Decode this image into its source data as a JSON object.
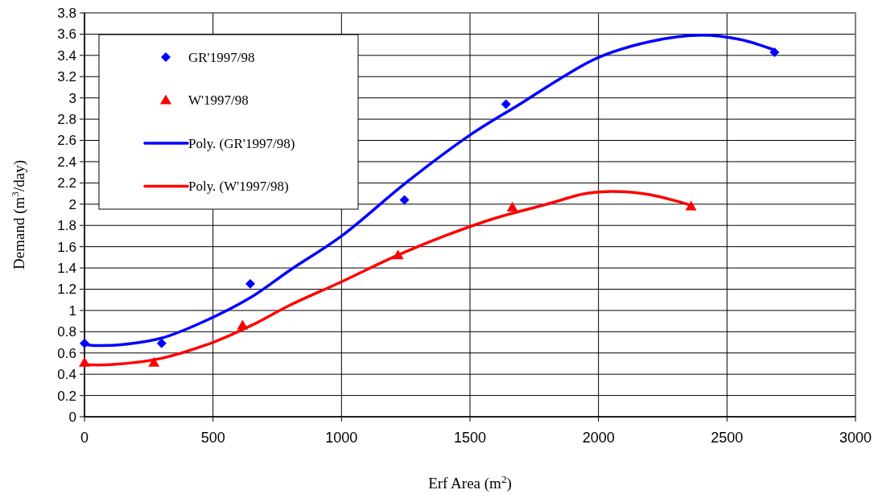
{
  "chart_data": {
    "type": "scatter",
    "xlabel": "Erf Area (m$^{2}$)",
    "ylabel": "Demand (m$^{3}$/day)",
    "xlim": [
      0,
      3000
    ],
    "xticks": [
      0,
      500,
      1000,
      1500,
      2000,
      2500,
      3000
    ],
    "ylim": [
      0,
      3.8
    ],
    "yticks": [
      0,
      0.2,
      0.4,
      0.6,
      0.8,
      1,
      1.2,
      1.4,
      1.6,
      1.8,
      2,
      2.2,
      2.4,
      2.6,
      2.8,
      3,
      3.2,
      3.4,
      3.6,
      3.8
    ],
    "grid": true,
    "legend": "top left",
    "series": [
      {
        "name": "GR'1997/98",
        "marker": "diamond",
        "color": "#0000ff",
        "x": [
          0,
          300,
          645,
          1245,
          1640,
          2685
        ],
        "values": [
          0.69,
          0.69,
          1.25,
          2.04,
          2.94,
          3.43
        ]
      },
      {
        "name": "W'1997/98",
        "marker": "triangle",
        "color": "#ff0000",
        "x": [
          0,
          270,
          615,
          1220,
          1665,
          2360
        ],
        "values": [
          0.51,
          0.51,
          0.86,
          1.52,
          1.97,
          1.98
        ]
      },
      {
        "name": "Poly. (GR'1997/98)",
        "type": "line",
        "marker": "none",
        "color": "#0000ff",
        "x": [
          0,
          50,
          150,
          300,
          450,
          645,
          800,
          1000,
          1250,
          1500,
          1700,
          1850,
          2000,
          2200,
          2400,
          2550,
          2685
        ],
        "values": [
          0.68,
          0.67,
          0.68,
          0.74,
          0.88,
          1.12,
          1.38,
          1.7,
          2.2,
          2.65,
          2.95,
          3.18,
          3.38,
          3.53,
          3.59,
          3.55,
          3.45
        ]
      },
      {
        "name": "Poly. (W'1997/98)",
        "type": "line",
        "marker": "none",
        "color": "#ff0000",
        "x": [
          0,
          100,
          300,
          500,
          650,
          800,
          1000,
          1200,
          1400,
          1600,
          1800,
          1950,
          2050,
          2200,
          2360
        ],
        "values": [
          0.49,
          0.49,
          0.55,
          0.7,
          0.86,
          1.05,
          1.27,
          1.5,
          1.7,
          1.87,
          2.0,
          2.1,
          2.12,
          2.09,
          1.99
        ]
      }
    ]
  }
}
